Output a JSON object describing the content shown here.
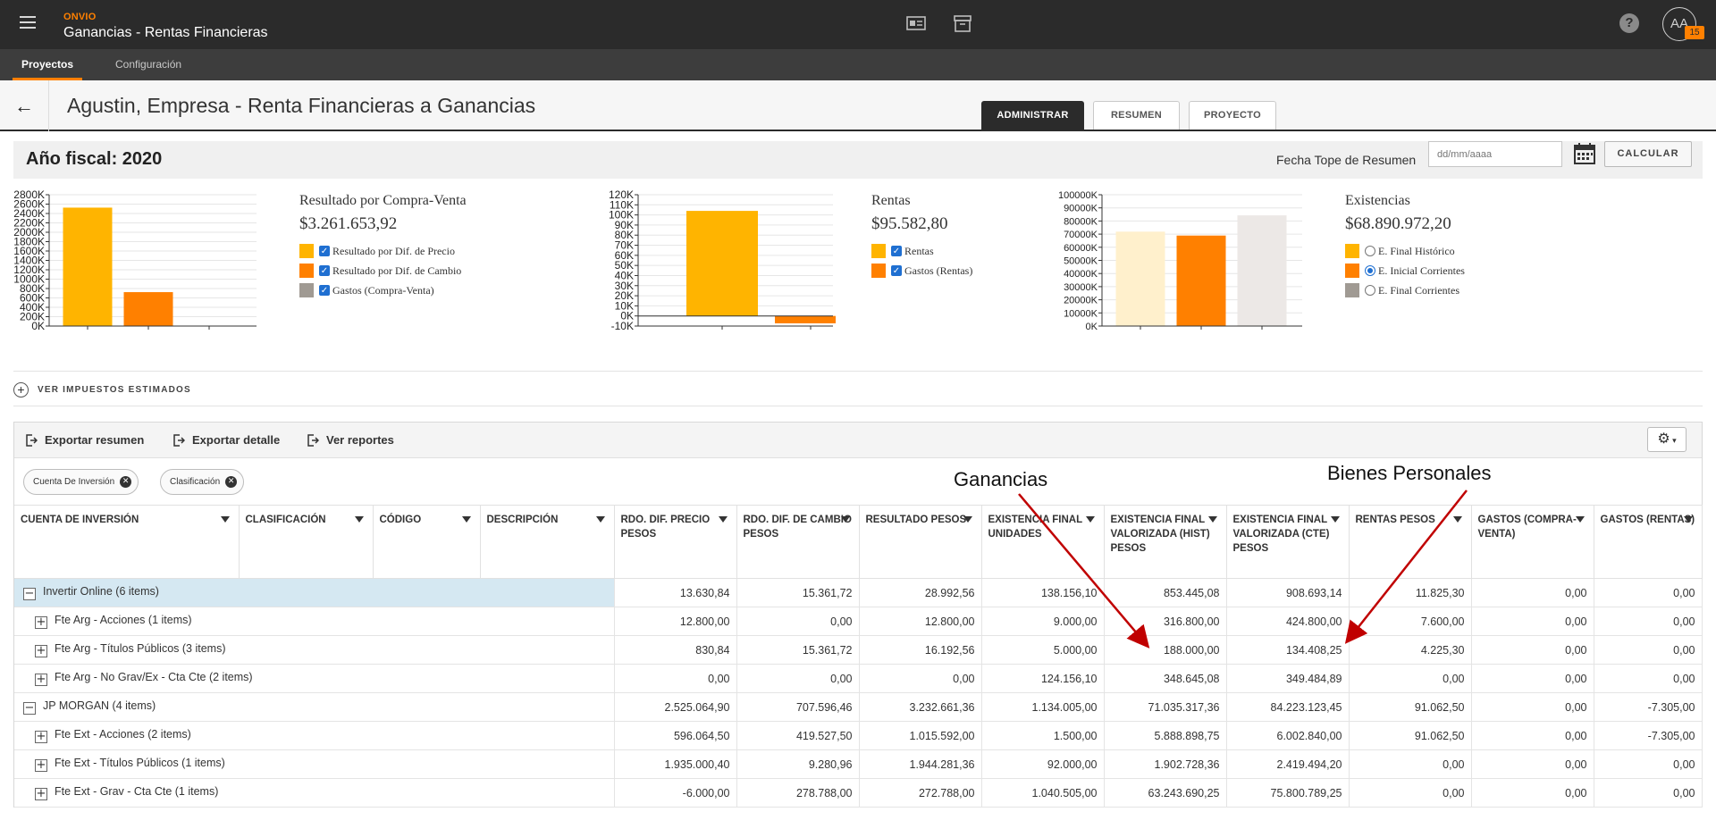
{
  "app": {
    "brand": "ONVIO",
    "title": "Ganancias - Rentas Financieras"
  },
  "user": {
    "initials": "AA",
    "badge": "15"
  },
  "nav": [
    {
      "label": "Proyectos",
      "active": true
    },
    {
      "label": "Configuración",
      "active": false
    }
  ],
  "header": {
    "title": "Agustin, Empresa - Renta Financieras a Ganancias",
    "tabs": [
      {
        "label": "ADMINISTRAR",
        "active": true
      },
      {
        "label": "RESUMEN",
        "active": false
      },
      {
        "label": "PROYECTO",
        "active": false
      }
    ]
  },
  "fiscal": {
    "label": "Año fiscal: 2020",
    "fecha_label": "Fecha Tope de Resumen",
    "fecha_placeholder": "dd/mm/aaaa",
    "calcular": "CALCULAR"
  },
  "colors": {
    "orange_dark": "#ff8000",
    "orange_light": "#ffb400",
    "gray": "#a09a93",
    "brand": "#ff8000"
  },
  "chart_data": [
    {
      "type": "bar",
      "categories": [
        "Resultado por Dif. de Precio",
        "Resultado por Dif. de Cambio",
        "Gastos (Compra-Venta)"
      ],
      "values": [
        2525000,
        723000,
        0
      ],
      "ylim": [
        0,
        2800000
      ],
      "yticks": [
        "0K",
        "200K",
        "400K",
        "600K",
        "800K",
        "1000K",
        "1200K",
        "1400K",
        "1600K",
        "1800K",
        "2000K",
        "2200K",
        "2400K",
        "2600K",
        "2800K"
      ],
      "grid": true
    },
    {
      "type": "bar",
      "categories": [
        "Rentas",
        "Gastos (Rentas)"
      ],
      "values": [
        104000,
        -7305
      ],
      "ylim": [
        -10000,
        120000
      ],
      "yticks": [
        "-10K",
        "0K",
        "10K",
        "20K",
        "30K",
        "40K",
        "50K",
        "60K",
        "70K",
        "80K",
        "90K",
        "100K",
        "110K",
        "120K"
      ],
      "grid": true
    },
    {
      "type": "bar",
      "categories": [
        "E. Final Histórico",
        "E. Inicial Corrientes",
        "E. Final Corrientes"
      ],
      "values": [
        71900000,
        68900000,
        84300000
      ],
      "ylim": [
        0,
        100000000
      ],
      "yticks": [
        "0K",
        "10000K",
        "20000K",
        "30000K",
        "40000K",
        "50000K",
        "60000K",
        "70000K",
        "80000K",
        "90000K",
        "100000K"
      ],
      "grid": true
    }
  ],
  "legends": [
    {
      "title": "Resultado por Compra-Venta",
      "total": "$3.261.653,92",
      "items": [
        "Resultado por Dif. de Precio",
        "Resultado por Dif. de Cambio",
        "Gastos (Compra-Venta)"
      ]
    },
    {
      "title": "Rentas",
      "total": "$95.582,80",
      "items": [
        "Rentas",
        "Gastos (Rentas)"
      ]
    },
    {
      "title": "Existencias",
      "total": "$68.890.972,20",
      "items": [
        "E. Final Histórico",
        "E. Inicial Corrientes",
        "E. Final Corrientes"
      ]
    }
  ],
  "impuestos_label": "VER IMPUESTOS ESTIMADOS",
  "toolbar": {
    "export_summary": "Exportar resumen",
    "export_detail": "Exportar detalle",
    "reports": "Ver reportes"
  },
  "filters": [
    "Cuenta De Inversión",
    "Clasificación"
  ],
  "table": {
    "columns": [
      "CUENTA DE INVERSIÓN",
      "CLASIFICACIÓN",
      "CÓDIGO",
      "DESCRIPCIÓN",
      "RDO. DIF. PRECIO PESOS",
      "RDO. DIF. DE CAMBIO PESOS",
      "RESULTADO PESOS",
      "EXISTENCIA FINAL UNIDADES",
      "EXISTENCIA FINAL VALORIZADA (HIST) PESOS",
      "EXISTENCIA FINAL VALORIZADA (CTE) PESOS",
      "RENTAS PESOS",
      "GASTOS (COMPRA-VENTA)",
      "GASTOS (RENTAS)"
    ],
    "rows": [
      {
        "name": "Invertir Online (6 items)",
        "group": true,
        "values": [
          "13.630,84",
          "15.361,72",
          "28.992,56",
          "138.156,10",
          "853.445,08",
          "908.693,14",
          "11.825,30",
          "0,00",
          "0,00"
        ]
      },
      {
        "name": "Fte Arg - Acciones (1 items)",
        "group": false,
        "values": [
          "12.800,00",
          "0,00",
          "12.800,00",
          "9.000,00",
          "316.800,00",
          "424.800,00",
          "7.600,00",
          "0,00",
          "0,00"
        ]
      },
      {
        "name": "Fte Arg - Títulos Públicos (3 items)",
        "group": false,
        "values": [
          "830,84",
          "15.361,72",
          "16.192,56",
          "5.000,00",
          "188.000,00",
          "134.408,25",
          "4.225,30",
          "0,00",
          "0,00"
        ]
      },
      {
        "name": "Fte Arg - No Grav/Ex - Cta Cte (2 items)",
        "group": false,
        "values": [
          "0,00",
          "0,00",
          "0,00",
          "124.156,10",
          "348.645,08",
          "349.484,89",
          "0,00",
          "0,00",
          "0,00"
        ]
      },
      {
        "name": "JP MORGAN (4 items)",
        "group": true,
        "values": [
          "2.525.064,90",
          "707.596,46",
          "3.232.661,36",
          "1.134.005,00",
          "71.035.317,36",
          "84.223.123,45",
          "91.062,50",
          "0,00",
          "-7.305,00"
        ]
      },
      {
        "name": "Fte Ext - Acciones (2 items)",
        "group": false,
        "values": [
          "596.064,50",
          "419.527,50",
          "1.015.592,00",
          "1.500,00",
          "5.888.898,75",
          "6.002.840,00",
          "91.062,50",
          "0,00",
          "-7.305,00"
        ]
      },
      {
        "name": "Fte Ext - Títulos Públicos (1 items)",
        "group": false,
        "values": [
          "1.935.000,40",
          "9.280,96",
          "1.944.281,36",
          "92.000,00",
          "1.902.728,36",
          "2.419.494,20",
          "0,00",
          "0,00",
          "0,00"
        ]
      },
      {
        "name": "Fte Ext - Grav - Cta Cte (1 items)",
        "group": false,
        "values": [
          "-6.000,00",
          "278.788,00",
          "272.788,00",
          "1.040.505,00",
          "63.243.690,25",
          "75.800.789,25",
          "0,00",
          "0,00",
          "0,00"
        ]
      }
    ]
  },
  "annotations": {
    "ganancias": "Ganancias",
    "bienes": "Bienes Personales"
  }
}
